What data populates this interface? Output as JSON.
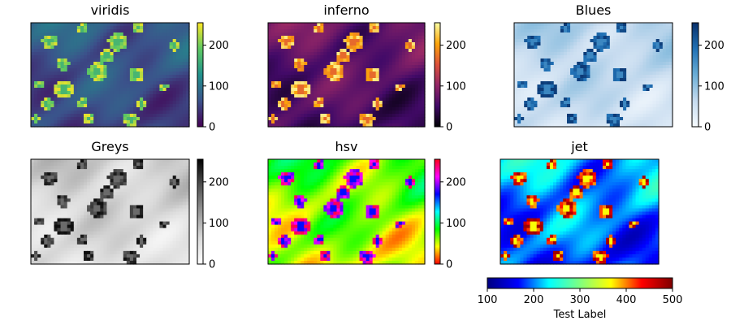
{
  "chart_data": {
    "type": "heatmap",
    "image_description": "Same photo of daisies rendered with six different colormaps",
    "panels": [
      {
        "title": "viridis",
        "cmap": [
          "#440154",
          "#3b528b",
          "#21918c",
          "#5ec962",
          "#fde725"
        ],
        "colorbar": {
          "orientation": "vertical",
          "ticks": [
            "0",
            "100",
            "200"
          ],
          "range": [
            0,
            255
          ]
        }
      },
      {
        "title": "inferno",
        "cmap": [
          "#000004",
          "#420a68",
          "#932667",
          "#dd513a",
          "#fca50a",
          "#fcffa4"
        ],
        "colorbar": {
          "orientation": "vertical",
          "ticks": [
            "0",
            "100",
            "200"
          ],
          "range": [
            0,
            255
          ]
        }
      },
      {
        "title": "Blues",
        "cmap": [
          "#f7fbff",
          "#c6dbef",
          "#6baed6",
          "#2171b5",
          "#08306b"
        ],
        "colorbar": {
          "orientation": "vertical",
          "ticks": [
            "0",
            "100",
            "200"
          ],
          "range": [
            0,
            255
          ]
        }
      },
      {
        "title": "Greys",
        "cmap": [
          "#ffffff",
          "#d9d9d9",
          "#969696",
          "#525252",
          "#000000"
        ],
        "colorbar": {
          "orientation": "vertical",
          "ticks": [
            "0",
            "100",
            "200"
          ],
          "range": [
            0,
            255
          ]
        }
      },
      {
        "title": "hsv",
        "cmap": [
          "#ff0000",
          "#ffff00",
          "#00ff00",
          "#00ffff",
          "#0000ff",
          "#ff00ff",
          "#ff0018"
        ],
        "colorbar": {
          "orientation": "vertical",
          "ticks": [
            "0",
            "100",
            "200"
          ],
          "range": [
            0,
            255
          ]
        }
      },
      {
        "title": "jet",
        "cmap": [
          "#00007f",
          "#0000ff",
          "#00ffff",
          "#7fff7f",
          "#ffff00",
          "#ff0000",
          "#7f0000"
        ],
        "colorbar": null
      }
    ],
    "shared_colorbar": {
      "orientation": "horizontal",
      "cmap": [
        "#00007f",
        "#0000ff",
        "#00ffff",
        "#7fff7f",
        "#ffff00",
        "#ff0000",
        "#7f0000"
      ],
      "ticks": [
        "100",
        "200",
        "300",
        "400",
        "500"
      ],
      "range": [
        100,
        500
      ],
      "label": "Test Label"
    }
  }
}
